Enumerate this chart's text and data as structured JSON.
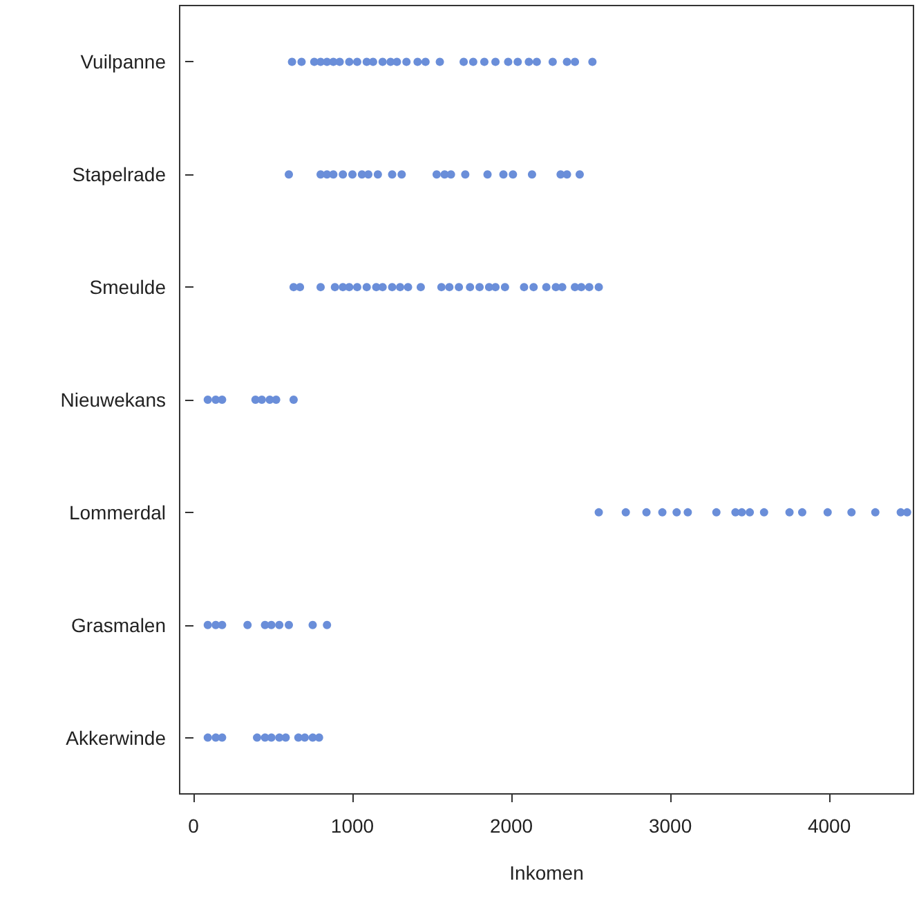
{
  "chart_data": {
    "type": "scatter",
    "orientation": "horizontal",
    "xlabel": "Inkomen",
    "categories": [
      "Vuilpanne",
      "Stapelrade",
      "Smeulde",
      "Nieuwekans",
      "Lommerdal",
      "Grasmalen",
      "Akkerwinde"
    ],
    "xlim": [
      -87,
      4530
    ],
    "xticks": [
      0,
      1000,
      2000,
      3000,
      4000
    ],
    "grid": false,
    "marker": "circle",
    "series": [
      {
        "color": "#6a8ed9",
        "x": [
          "Vuilpanne",
          "Vuilpanne",
          "Vuilpanne",
          "Vuilpanne",
          "Vuilpanne",
          "Vuilpanne",
          "Vuilpanne",
          "Vuilpanne",
          "Vuilpanne",
          "Vuilpanne",
          "Vuilpanne",
          "Vuilpanne",
          "Vuilpanne",
          "Vuilpanne",
          "Vuilpanne",
          "Vuilpanne",
          "Vuilpanne",
          "Vuilpanne",
          "Vuilpanne",
          "Vuilpanne",
          "Vuilpanne",
          "Vuilpanne",
          "Vuilpanne",
          "Vuilpanne",
          "Vuilpanne",
          "Vuilpanne",
          "Vuilpanne",
          "Vuilpanne",
          "Vuilpanne",
          "Vuilpanne",
          "Stapelrade",
          "Stapelrade",
          "Stapelrade",
          "Stapelrade",
          "Stapelrade",
          "Stapelrade",
          "Stapelrade",
          "Stapelrade",
          "Stapelrade",
          "Stapelrade",
          "Stapelrade",
          "Stapelrade",
          "Stapelrade",
          "Stapelrade",
          "Stapelrade",
          "Stapelrade",
          "Stapelrade",
          "Stapelrade",
          "Stapelrade",
          "Stapelrade",
          "Stapelrade",
          "Stapelrade",
          "Smeulde",
          "Smeulde",
          "Smeulde",
          "Smeulde",
          "Smeulde",
          "Smeulde",
          "Smeulde",
          "Smeulde",
          "Smeulde",
          "Smeulde",
          "Smeulde",
          "Smeulde",
          "Smeulde",
          "Smeulde",
          "Smeulde",
          "Smeulde",
          "Smeulde",
          "Smeulde",
          "Smeulde",
          "Smeulde",
          "Smeulde",
          "Smeulde",
          "Smeulde",
          "Smeulde",
          "Smeulde",
          "Smeulde",
          "Smeulde",
          "Smeulde",
          "Smeulde",
          "Smeulde",
          "Smeulde",
          "Nieuwekans",
          "Nieuwekans",
          "Nieuwekans",
          "Nieuwekans",
          "Nieuwekans",
          "Nieuwekans",
          "Nieuwekans",
          "Nieuwekans",
          "Lommerdal",
          "Lommerdal",
          "Lommerdal",
          "Lommerdal",
          "Lommerdal",
          "Lommerdal",
          "Lommerdal",
          "Lommerdal",
          "Lommerdal",
          "Lommerdal",
          "Lommerdal",
          "Lommerdal",
          "Lommerdal",
          "Lommerdal",
          "Lommerdal",
          "Lommerdal",
          "Lommerdal",
          "Lommerdal",
          "Grasmalen",
          "Grasmalen",
          "Grasmalen",
          "Grasmalen",
          "Grasmalen",
          "Grasmalen",
          "Grasmalen",
          "Grasmalen",
          "Grasmalen",
          "Grasmalen",
          "Akkerwinde",
          "Akkerwinde",
          "Akkerwinde",
          "Akkerwinde",
          "Akkerwinde",
          "Akkerwinde",
          "Akkerwinde",
          "Akkerwinde",
          "Akkerwinde",
          "Akkerwinde",
          "Akkerwinde",
          "Akkerwinde"
        ],
        "values": [
          620,
          680,
          760,
          800,
          840,
          880,
          920,
          980,
          1030,
          1090,
          1130,
          1190,
          1240,
          1280,
          1340,
          1410,
          1460,
          1550,
          1700,
          1760,
          1830,
          1900,
          1980,
          2040,
          2110,
          2160,
          2260,
          2350,
          2400,
          2510,
          600,
          800,
          840,
          880,
          940,
          1000,
          1060,
          1100,
          1160,
          1250,
          1310,
          1530,
          1580,
          1620,
          1710,
          1850,
          1950,
          2010,
          2130,
          2310,
          2350,
          2430,
          630,
          670,
          800,
          890,
          940,
          980,
          1030,
          1090,
          1150,
          1190,
          1250,
          1300,
          1350,
          1430,
          1560,
          1610,
          1670,
          1740,
          1800,
          1860,
          1900,
          1960,
          2080,
          2140,
          2220,
          2280,
          2320,
          2400,
          2440,
          2490,
          2550,
          90,
          140,
          180,
          390,
          430,
          480,
          520,
          630,
          2550,
          2720,
          2850,
          2950,
          3040,
          3110,
          3290,
          3410,
          3450,
          3500,
          3590,
          3750,
          3830,
          3990,
          4140,
          4290,
          4450,
          4490,
          90,
          140,
          180,
          340,
          450,
          490,
          540,
          600,
          750,
          840,
          90,
          140,
          180,
          400,
          450,
          490,
          540,
          580,
          660,
          700,
          750,
          790
        ]
      }
    ]
  }
}
